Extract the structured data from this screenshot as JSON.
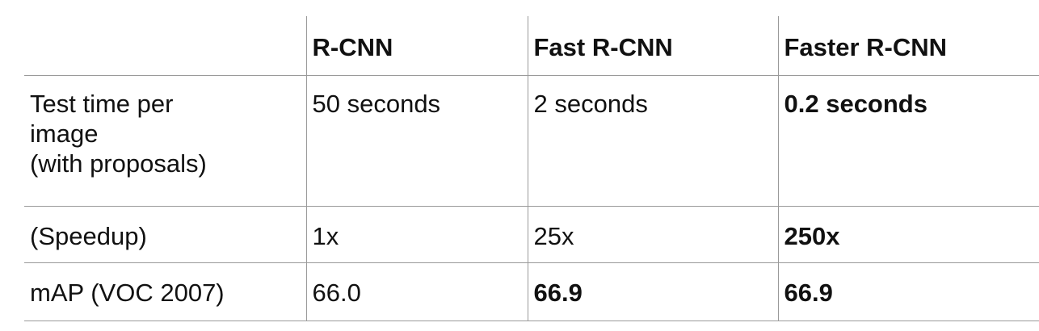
{
  "chart_data": {
    "type": "table",
    "columns": [
      "",
      "R-CNN",
      "Fast R-CNN",
      "Faster R-CNN"
    ],
    "rows": [
      {
        "label_lines": [
          "Test time per",
          "image",
          "(with proposals)"
        ],
        "cells": [
          {
            "text": "50 seconds",
            "bold": false
          },
          {
            "text": "2 seconds",
            "bold": false
          },
          {
            "text": "0.2 seconds",
            "bold": true
          }
        ]
      },
      {
        "label_lines": [
          "(Speedup)"
        ],
        "cells": [
          {
            "text": "1x",
            "bold": false
          },
          {
            "text": "25x",
            "bold": false
          },
          {
            "text": "250x",
            "bold": true
          }
        ]
      },
      {
        "label_lines": [
          "mAP (VOC 2007)"
        ],
        "cells": [
          {
            "text": "66.0",
            "bold": false
          },
          {
            "text": "66.9",
            "bold": true
          },
          {
            "text": "66.9",
            "bold": true
          }
        ]
      }
    ]
  }
}
